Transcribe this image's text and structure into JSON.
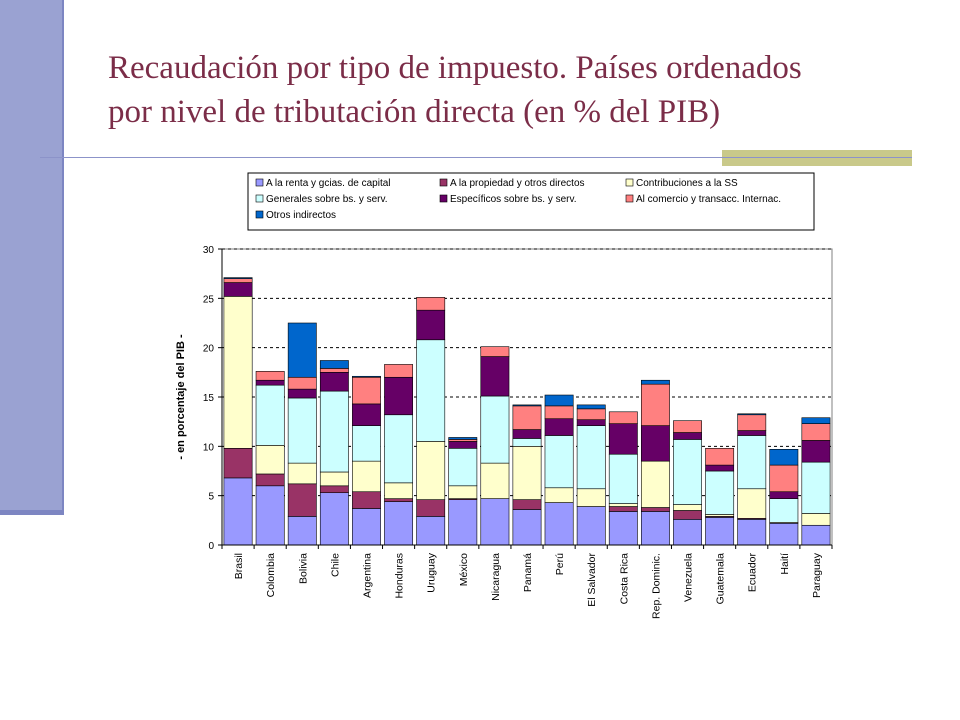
{
  "slide": {
    "title_line1": "Recaudación por tipo de impuesto. Países ordenados",
    "title_line2": "por nivel de tributación directa (en % del PIB)"
  },
  "chart_data": {
    "type": "bar",
    "stacked": true,
    "title": "",
    "xlabel": "",
    "ylabel": "- en porcentaje del PIB -",
    "ylim": [
      0,
      30
    ],
    "yticks": [
      0,
      5,
      10,
      15,
      20,
      25,
      30
    ],
    "grid": "horizontal-dashed",
    "legend_placement": "top",
    "categories": [
      "Brasil",
      "Colombia",
      "Bolivia",
      "Chile",
      "Argentina",
      "Honduras",
      "Uruguay",
      "México",
      "Nicaragua",
      "Panamá",
      "Perú",
      "El Salvador",
      "Costa Rica",
      "Rep. Dominic.",
      "Venezuela",
      "Guatemala",
      "Ecuador",
      "Haití",
      "Paraguay"
    ],
    "series": [
      {
        "name": "A la renta y gcias. de capital",
        "color": "#9999ff",
        "values": [
          6.8,
          6.0,
          2.9,
          5.3,
          3.7,
          4.4,
          2.9,
          4.6,
          4.7,
          3.6,
          4.3,
          3.9,
          3.4,
          3.4,
          2.6,
          2.8,
          2.6,
          2.2,
          2.0
        ]
      },
      {
        "name": "A la propiedad y otros directos",
        "color": "#993366",
        "values": [
          3.0,
          1.2,
          3.3,
          0.7,
          1.7,
          0.3,
          1.7,
          0.1,
          0.0,
          1.0,
          0.0,
          0.0,
          0.5,
          0.4,
          0.9,
          0.1,
          0.1,
          0.0,
          0.0
        ]
      },
      {
        "name": "Contribuciones a la SS",
        "color": "#ffffcc",
        "values": [
          15.4,
          2.9,
          2.1,
          1.4,
          3.1,
          1.6,
          5.9,
          1.3,
          3.6,
          5.4,
          1.5,
          1.8,
          0.3,
          4.7,
          0.6,
          0.2,
          3.0,
          0.1,
          1.2
        ]
      },
      {
        "name": "Generales sobre bs. y serv.",
        "color": "#ccffff",
        "values": [
          0.0,
          6.1,
          6.6,
          8.2,
          3.6,
          6.9,
          10.3,
          3.8,
          6.8,
          0.8,
          5.3,
          6.4,
          5.0,
          0.0,
          6.6,
          4.4,
          5.4,
          2.4,
          5.2
        ]
      },
      {
        "name": "Específicos sobre bs. y serv.",
        "color": "#660066",
        "values": [
          1.4,
          0.5,
          0.9,
          1.9,
          2.2,
          3.8,
          3.0,
          0.7,
          4.0,
          0.9,
          1.7,
          0.6,
          3.1,
          3.6,
          0.7,
          0.6,
          0.5,
          0.7,
          2.2
        ]
      },
      {
        "name": "Al comercio y transacc. Internac.",
        "color": "#ff8080",
        "values": [
          0.4,
          0.9,
          1.2,
          0.4,
          2.7,
          1.3,
          1.3,
          0.2,
          1.0,
          2.4,
          1.3,
          1.1,
          1.2,
          4.2,
          1.2,
          1.7,
          1.6,
          2.7,
          1.7
        ]
      },
      {
        "name": "Otros indirectos",
        "color": "#0066cc",
        "values": [
          0.1,
          0.0,
          5.5,
          0.8,
          0.1,
          0.0,
          0.0,
          0.2,
          0.0,
          0.1,
          1.1,
          0.4,
          0.0,
          0.4,
          0.0,
          0.0,
          0.1,
          1.6,
          0.6
        ]
      }
    ]
  }
}
